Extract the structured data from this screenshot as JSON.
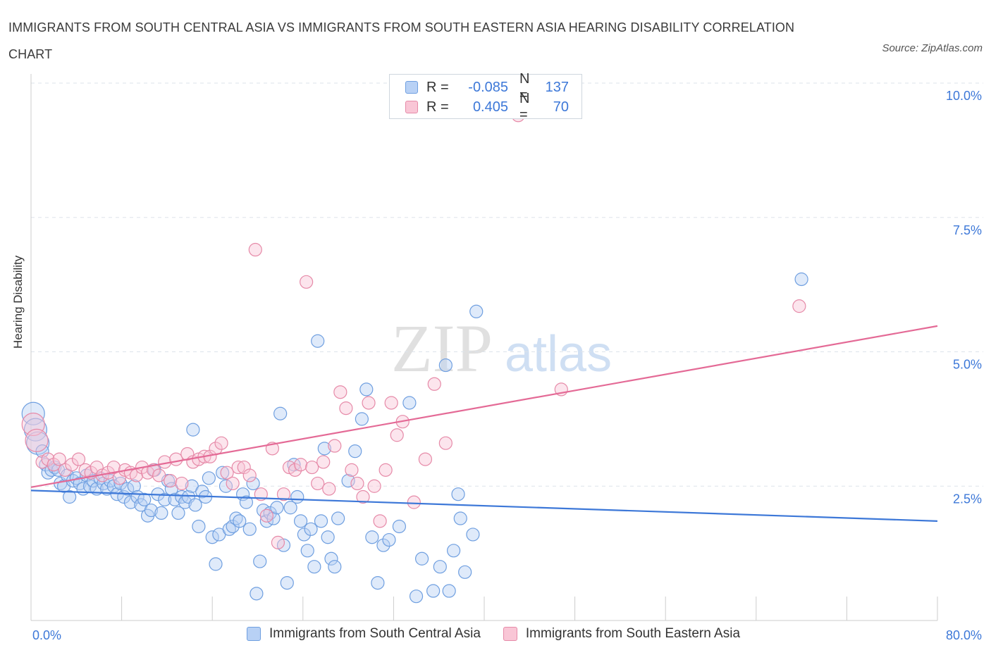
{
  "title": "IMMIGRANTS FROM SOUTH CENTRAL ASIA VS IMMIGRANTS FROM SOUTH EASTERN ASIA HEARING DISABILITY CORRELATION CHART",
  "source": "Source: ZipAtlas.com",
  "watermark": {
    "zip": "ZIP",
    "atlas": "atlas"
  },
  "legend_stats": [
    {
      "r_label": "R =",
      "r_value": "-0.085",
      "n_label": "N =",
      "n_value": "137"
    },
    {
      "r_label": "R =",
      "r_value": "0.405",
      "n_label": "N =",
      "n_value": "70"
    }
  ],
  "colors": {
    "blue": "#3d78d8",
    "blue_fill": "#b8d1f5",
    "pink": "#e46a96",
    "pink_fill": "#f9c6d6",
    "axis_text": "#3d78d8",
    "grid": "#dde3ea"
  },
  "chart_data": {
    "type": "scatter",
    "title": "IMMIGRANTS FROM SOUTH CENTRAL ASIA VS IMMIGRANTS FROM SOUTH EASTERN ASIA HEARING DISABILITY CORRELATION CHART",
    "xlabel": "",
    "ylabel": "Hearing Disability",
    "xlim": [
      0,
      80
    ],
    "ylim": [
      0,
      10
    ],
    "x_tick_labels": [
      "0.0%",
      "80.0%"
    ],
    "y_tick_labels": [
      "2.5%",
      "5.0%",
      "7.5%",
      "10.0%"
    ],
    "y_ticks": [
      2.5,
      5.0,
      7.5,
      10.0
    ],
    "grid": "horizontal dashed",
    "legend_position": "bottom",
    "series": [
      {
        "name": "Immigrants from South Central Asia",
        "color": "#3d78d8",
        "trend": {
          "x": [
            0,
            80
          ],
          "y": [
            2.42,
            1.85
          ]
        },
        "points": [
          [
            0.2,
            3.85
          ],
          [
            0.4,
            3.55
          ],
          [
            0.6,
            3.3
          ],
          [
            1.0,
            3.15
          ],
          [
            1.3,
            2.9
          ],
          [
            1.5,
            2.75
          ],
          [
            1.8,
            2.8
          ],
          [
            2.1,
            2.85
          ],
          [
            2.4,
            2.8
          ],
          [
            2.6,
            2.55
          ],
          [
            2.9,
            2.5
          ],
          [
            3.2,
            2.7
          ],
          [
            3.4,
            2.3
          ],
          [
            3.7,
            2.6
          ],
          [
            4.0,
            2.65
          ],
          [
            4.3,
            2.55
          ],
          [
            4.6,
            2.45
          ],
          [
            4.9,
            2.7
          ],
          [
            5.2,
            2.5
          ],
          [
            5.5,
            2.6
          ],
          [
            5.8,
            2.45
          ],
          [
            6.1,
            2.65
          ],
          [
            6.4,
            2.55
          ],
          [
            6.7,
            2.45
          ],
          [
            7.0,
            2.6
          ],
          [
            7.3,
            2.5
          ],
          [
            7.6,
            2.35
          ],
          [
            7.9,
            2.55
          ],
          [
            8.2,
            2.3
          ],
          [
            8.5,
            2.45
          ],
          [
            8.8,
            2.2
          ],
          [
            9.1,
            2.5
          ],
          [
            9.4,
            2.3
          ],
          [
            9.7,
            2.15
          ],
          [
            10.0,
            2.25
          ],
          [
            10.3,
            1.95
          ],
          [
            10.6,
            2.05
          ],
          [
            10.9,
            2.8
          ],
          [
            11.2,
            2.35
          ],
          [
            11.5,
            2.0
          ],
          [
            11.8,
            2.25
          ],
          [
            12.1,
            2.6
          ],
          [
            12.4,
            2.45
          ],
          [
            12.7,
            2.25
          ],
          [
            13.0,
            2.0
          ],
          [
            13.3,
            2.3
          ],
          [
            13.6,
            2.2
          ],
          [
            13.9,
            2.3
          ],
          [
            14.2,
            2.5
          ],
          [
            14.5,
            2.15
          ],
          [
            14.8,
            1.75
          ],
          [
            15.1,
            2.4
          ],
          [
            15.4,
            2.3
          ],
          [
            15.7,
            2.65
          ],
          [
            16.0,
            1.55
          ],
          [
            16.3,
            1.05
          ],
          [
            16.6,
            1.6
          ],
          [
            16.9,
            2.75
          ],
          [
            17.2,
            2.5
          ],
          [
            17.5,
            1.7
          ],
          [
            17.8,
            1.75
          ],
          [
            18.1,
            1.9
          ],
          [
            18.4,
            1.85
          ],
          [
            18.7,
            2.35
          ],
          [
            19.0,
            2.2
          ],
          [
            19.3,
            1.7
          ],
          [
            19.6,
            2.55
          ],
          [
            19.9,
            0.5
          ],
          [
            20.2,
            1.1
          ],
          [
            20.5,
            2.05
          ],
          [
            20.8,
            1.85
          ],
          [
            21.1,
            2.0
          ],
          [
            21.4,
            1.9
          ],
          [
            21.7,
            2.1
          ],
          [
            22.0,
            3.85
          ],
          [
            22.3,
            1.4
          ],
          [
            22.6,
            0.7
          ],
          [
            22.9,
            2.1
          ],
          [
            23.2,
            2.9
          ],
          [
            23.5,
            2.3
          ],
          [
            23.8,
            1.85
          ],
          [
            24.1,
            1.6
          ],
          [
            24.4,
            1.3
          ],
          [
            24.7,
            1.7
          ],
          [
            25.0,
            1.0
          ],
          [
            25.3,
            5.2
          ],
          [
            25.6,
            1.85
          ],
          [
            25.9,
            3.2
          ],
          [
            26.2,
            1.55
          ],
          [
            26.5,
            1.15
          ],
          [
            26.8,
            1.0
          ],
          [
            27.1,
            1.9
          ],
          [
            28.0,
            2.6
          ],
          [
            28.6,
            3.15
          ],
          [
            29.2,
            3.75
          ],
          [
            29.6,
            4.3
          ],
          [
            30.1,
            1.55
          ],
          [
            30.6,
            0.7
          ],
          [
            31.1,
            1.4
          ],
          [
            31.6,
            1.5
          ],
          [
            32.5,
            1.75
          ],
          [
            33.4,
            4.05
          ],
          [
            34.0,
            0.45
          ],
          [
            34.5,
            1.15
          ],
          [
            35.5,
            0.55
          ],
          [
            36.1,
            1.0
          ],
          [
            36.6,
            4.75
          ],
          [
            36.9,
            0.55
          ],
          [
            37.3,
            1.3
          ],
          [
            37.7,
            2.35
          ],
          [
            37.9,
            1.9
          ],
          [
            38.3,
            0.9
          ],
          [
            39.0,
            1.6
          ],
          [
            39.3,
            5.75
          ],
          [
            14.3,
            3.55
          ],
          [
            68.0,
            6.35
          ]
        ]
      },
      {
        "name": "Immigrants from South Eastern Asia",
        "color": "#e46a96",
        "trend": {
          "x": [
            0,
            80
          ],
          "y": [
            2.48,
            5.48
          ]
        },
        "points": [
          [
            0.2,
            3.65
          ],
          [
            0.5,
            3.35
          ],
          [
            1.0,
            2.95
          ],
          [
            1.5,
            3.0
          ],
          [
            2.0,
            2.9
          ],
          [
            2.5,
            3.0
          ],
          [
            3.0,
            2.8
          ],
          [
            3.6,
            2.9
          ],
          [
            4.2,
            3.0
          ],
          [
            4.8,
            2.8
          ],
          [
            5.3,
            2.75
          ],
          [
            5.8,
            2.85
          ],
          [
            6.3,
            2.7
          ],
          [
            6.8,
            2.75
          ],
          [
            7.3,
            2.85
          ],
          [
            7.8,
            2.65
          ],
          [
            8.3,
            2.8
          ],
          [
            8.8,
            2.75
          ],
          [
            9.3,
            2.7
          ],
          [
            9.8,
            2.85
          ],
          [
            10.3,
            2.75
          ],
          [
            10.8,
            2.8
          ],
          [
            11.3,
            2.7
          ],
          [
            11.8,
            2.95
          ],
          [
            12.3,
            2.6
          ],
          [
            12.8,
            3.0
          ],
          [
            13.3,
            2.55
          ],
          [
            13.8,
            3.1
          ],
          [
            14.3,
            2.95
          ],
          [
            14.8,
            3.0
          ],
          [
            15.3,
            3.05
          ],
          [
            15.8,
            3.05
          ],
          [
            16.3,
            3.2
          ],
          [
            16.8,
            3.3
          ],
          [
            17.3,
            2.75
          ],
          [
            17.8,
            2.55
          ],
          [
            18.3,
            2.85
          ],
          [
            18.8,
            2.85
          ],
          [
            19.3,
            2.7
          ],
          [
            19.8,
            6.9
          ],
          [
            20.3,
            2.35
          ],
          [
            20.8,
            1.95
          ],
          [
            21.3,
            3.2
          ],
          [
            21.8,
            1.45
          ],
          [
            22.3,
            2.35
          ],
          [
            22.8,
            2.85
          ],
          [
            23.3,
            2.8
          ],
          [
            23.8,
            2.9
          ],
          [
            24.3,
            6.3
          ],
          [
            24.8,
            2.85
          ],
          [
            25.3,
            2.55
          ],
          [
            25.8,
            2.95
          ],
          [
            26.3,
            2.45
          ],
          [
            26.8,
            3.25
          ],
          [
            27.3,
            4.25
          ],
          [
            27.8,
            3.95
          ],
          [
            28.3,
            2.8
          ],
          [
            28.8,
            2.55
          ],
          [
            29.3,
            2.3
          ],
          [
            29.8,
            4.05
          ],
          [
            30.3,
            2.5
          ],
          [
            30.8,
            1.85
          ],
          [
            31.3,
            2.8
          ],
          [
            31.8,
            4.05
          ],
          [
            32.3,
            3.45
          ],
          [
            32.8,
            3.7
          ],
          [
            33.8,
            2.2
          ],
          [
            34.8,
            3.0
          ],
          [
            35.6,
            4.4
          ],
          [
            36.6,
            3.3
          ],
          [
            46.8,
            4.3
          ],
          [
            67.8,
            5.85
          ],
          [
            43.0,
            9.4
          ]
        ]
      }
    ]
  }
}
